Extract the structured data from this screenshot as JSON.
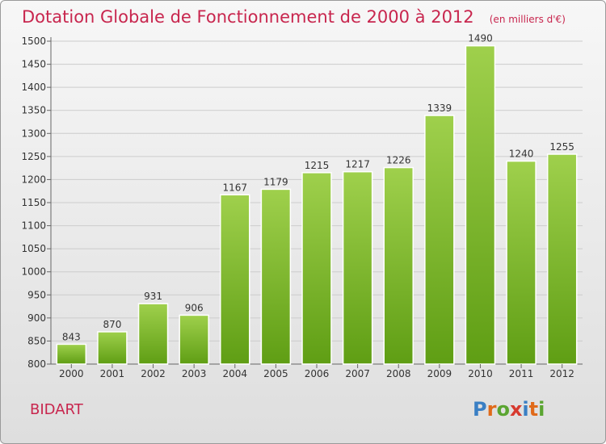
{
  "title": "Dotation Globale de Fonctionnement de 2000 à 2012",
  "subtitle": "(en milliers d'€)",
  "footer_label": "BIDART",
  "logo": {
    "letters": [
      "P",
      "r",
      "o",
      "x",
      "i",
      "t",
      "i"
    ],
    "colors": [
      "#3a7fc4",
      "#e06a1a",
      "#5aa531",
      "#d73a2f",
      "#3a7fc4",
      "#e06a1a",
      "#5aa531"
    ]
  },
  "chart_data": {
    "type": "bar",
    "title": "Dotation Globale de Fonctionnement de 2000 à 2012",
    "subtitle": "(en milliers d'€)",
    "categories": [
      "2000",
      "2001",
      "2002",
      "2003",
      "2004",
      "2005",
      "2006",
      "2007",
      "2008",
      "2009",
      "2010",
      "2011",
      "2012"
    ],
    "values": [
      843,
      870,
      931,
      906,
      1167,
      1179,
      1215,
      1217,
      1226,
      1339,
      1490,
      1240,
      1255
    ],
    "xlabel": "",
    "ylabel": "",
    "ylim": [
      800,
      1500
    ],
    "yticks": [
      800,
      850,
      900,
      950,
      1000,
      1050,
      1100,
      1150,
      1200,
      1250,
      1300,
      1350,
      1400,
      1450,
      1500
    ],
    "grid": true,
    "bar_color": "#7fbf2a"
  }
}
